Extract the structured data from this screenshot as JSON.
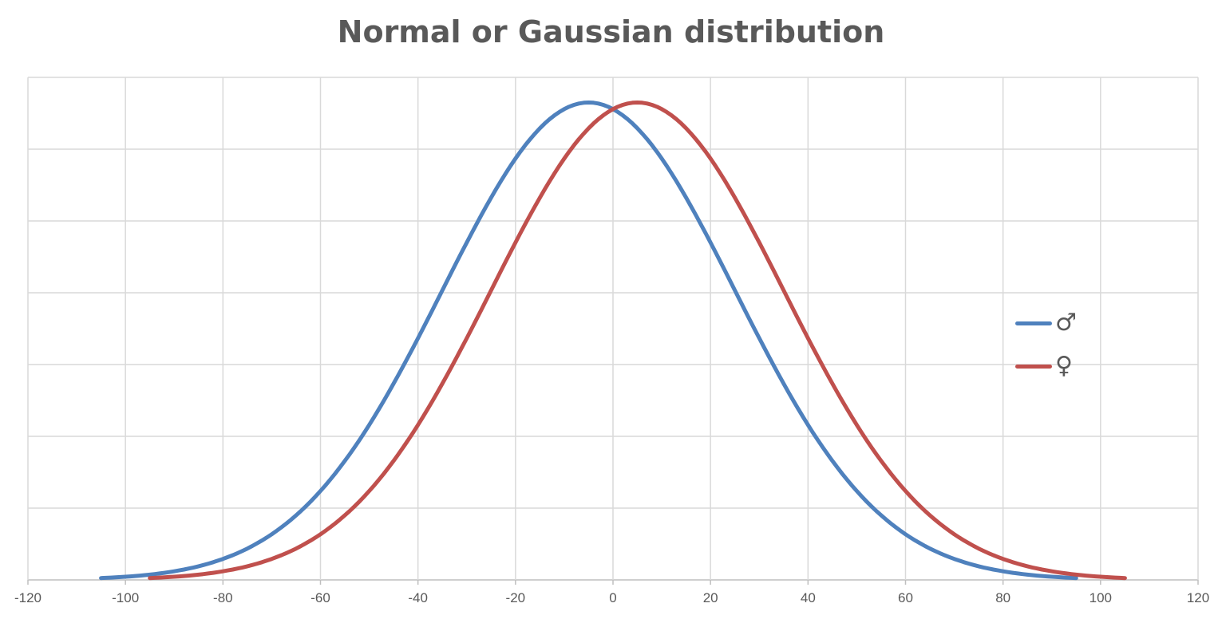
{
  "chart": {
    "title": "Normal or Gaussian distribution",
    "legend": [
      {
        "label": "♂",
        "color": "#4F81BD"
      },
      {
        "label": "♀",
        "color": "#C0504D"
      }
    ],
    "x_ticks": [
      "-120",
      "-100",
      "-80",
      "-60",
      "-40",
      "-20",
      "0",
      "20",
      "40",
      "60",
      "80",
      "100",
      "120"
    ]
  },
  "chart_data": {
    "type": "line",
    "title": "Normal or Gaussian distribution",
    "xlabel": "",
    "ylabel": "",
    "xlim": [
      -120,
      120
    ],
    "ylim": [
      0,
      7
    ],
    "x_ticks": [
      -120,
      -100,
      -80,
      -60,
      -40,
      -20,
      0,
      20,
      40,
      60,
      80,
      100,
      120
    ],
    "y_ticks_labeled": false,
    "grid": {
      "x": true,
      "y": true,
      "y_gridlines": 7
    },
    "legend_position": "right",
    "series": [
      {
        "name": "♂",
        "color": "#4F81BD",
        "distribution": "normal",
        "mean": -5,
        "std": 30,
        "peak": 6.65,
        "x_range": [
          -105,
          95
        ],
        "x": [
          -105,
          -95,
          -85,
          -75,
          -65,
          -55,
          -45,
          -35,
          -25,
          -15,
          -5,
          5,
          15,
          25,
          35,
          45,
          55,
          65,
          75,
          85,
          95
        ],
        "y": [
          0.026,
          0.08,
          0.21,
          0.52,
          0.9,
          1.65,
          2.75,
          4.03,
          5.29,
          6.28,
          6.65,
          6.28,
          5.29,
          4.03,
          2.75,
          1.65,
          0.9,
          0.52,
          0.21,
          0.08,
          0.026
        ]
      },
      {
        "name": "♀",
        "color": "#C0504D",
        "distribution": "normal",
        "mean": 5,
        "std": 30,
        "peak": 6.65,
        "x_range": [
          -95,
          105
        ],
        "x": [
          -95,
          -85,
          -75,
          -65,
          -55,
          -45,
          -35,
          -25,
          -15,
          -5,
          5,
          15,
          25,
          35,
          45,
          55,
          65,
          75,
          85,
          95,
          105
        ],
        "y": [
          0.026,
          0.08,
          0.21,
          0.52,
          0.9,
          1.65,
          2.75,
          4.03,
          5.29,
          6.28,
          6.65,
          6.28,
          5.29,
          4.03,
          2.75,
          1.65,
          0.9,
          0.52,
          0.21,
          0.08,
          0.026
        ]
      }
    ]
  }
}
